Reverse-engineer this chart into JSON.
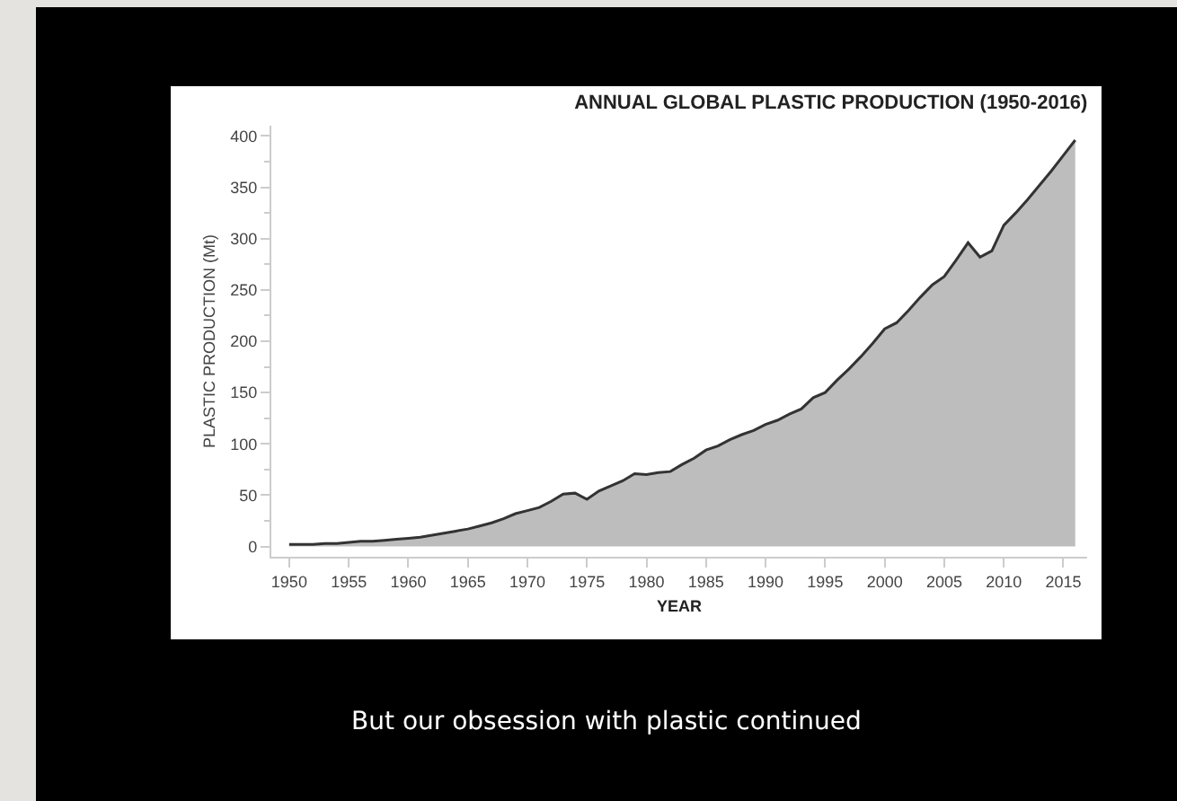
{
  "chart_data": {
    "type": "area",
    "title": "ANNUAL GLOBAL PLASTIC PRODUCTION (1950-2016)",
    "xlabel": "YEAR",
    "ylabel": "PLASTIC PRODUCTION (Mt)",
    "annotations": [
      "But our obsession with plastic continued"
    ],
    "x": [
      1950,
      1951,
      1952,
      1953,
      1954,
      1955,
      1956,
      1957,
      1958,
      1959,
      1960,
      1961,
      1962,
      1963,
      1964,
      1965,
      1966,
      1967,
      1968,
      1969,
      1970,
      1971,
      1972,
      1973,
      1974,
      1975,
      1976,
      1977,
      1978,
      1979,
      1980,
      1981,
      1982,
      1983,
      1984,
      1985,
      1986,
      1987,
      1988,
      1989,
      1990,
      1991,
      1992,
      1993,
      1994,
      1995,
      1996,
      1997,
      1998,
      1999,
      2000,
      2001,
      2002,
      2003,
      2004,
      2005,
      2006,
      2007,
      2008,
      2009,
      2010,
      2011,
      2012,
      2013,
      2014,
      2015,
      2016
    ],
    "series": [
      {
        "color": "#bdbdbd",
        "values": [
          2,
          2,
          2,
          3,
          3,
          4,
          5,
          5,
          6,
          7,
          8,
          9,
          11,
          13,
          15,
          17,
          20,
          23,
          27,
          32,
          35,
          38,
          44,
          51,
          52,
          46,
          54,
          59,
          64,
          71,
          70,
          72,
          73,
          80,
          86,
          94,
          98,
          104,
          109,
          113,
          119,
          123,
          129,
          134,
          145,
          150,
          162,
          173,
          185,
          198,
          212,
          218,
          230,
          243,
          255,
          263,
          279,
          296,
          282,
          288,
          313,
          325,
          338,
          352,
          366,
          381,
          396
        ]
      }
    ],
    "xlim": [
      1948.5,
      2017
    ],
    "xticks": [
      1950,
      1955,
      1960,
      1965,
      1970,
      1975,
      1980,
      1985,
      1990,
      1995,
      2000,
      2005,
      2010,
      2015
    ],
    "ylim": [
      -10,
      410
    ],
    "yticks": [
      0,
      50,
      100,
      150,
      200,
      250,
      300,
      350,
      400
    ],
    "grid": false,
    "legend": false
  }
}
